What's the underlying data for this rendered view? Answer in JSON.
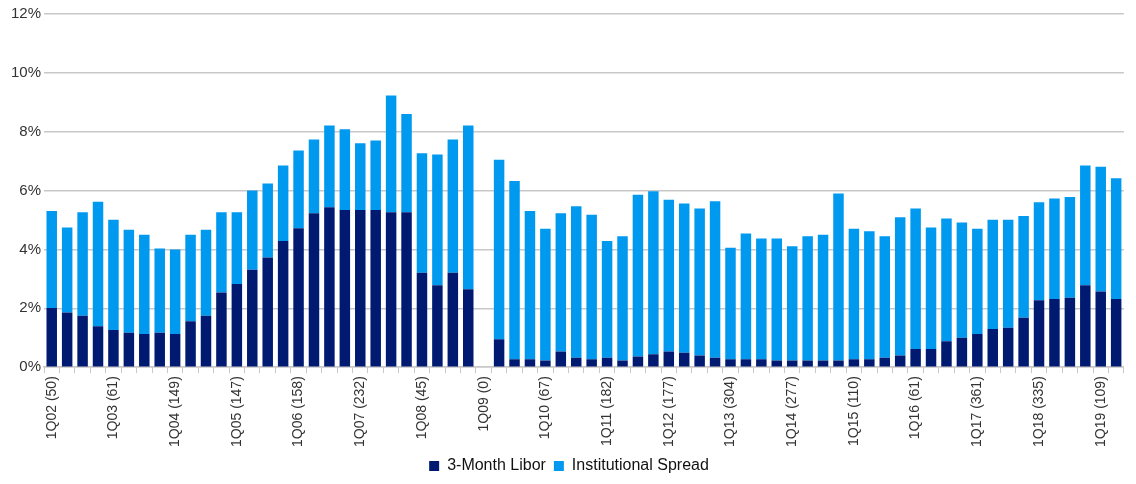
{
  "chart_data": {
    "type": "bar",
    "stacked": true,
    "categories": [
      "1Q02 (50)",
      null,
      null,
      null,
      "1Q03 (61)",
      null,
      null,
      null,
      "1Q04 (149)",
      null,
      null,
      null,
      "1Q05 (147)",
      null,
      null,
      null,
      "1Q06 (158)",
      null,
      null,
      null,
      "1Q07 (232)",
      null,
      null,
      null,
      "1Q08 (45)",
      null,
      null,
      null,
      "1Q09 (0)",
      null,
      null,
      null,
      "1Q10 (67)",
      null,
      null,
      null,
      "1Q11 (182)",
      null,
      null,
      null,
      "1Q12 (177)",
      null,
      null,
      null,
      "1Q13 (304)",
      null,
      null,
      null,
      "1Q14 (277)",
      null,
      null,
      null,
      "1Q15 (110)",
      null,
      null,
      null,
      "1Q16 (61)",
      null,
      null,
      null,
      "1Q17 (361)",
      null,
      null,
      null,
      "1Q18 (335)",
      null,
      null,
      null,
      "1Q19 (109)",
      null
    ],
    "series": [
      {
        "name": "3-Month Libor",
        "color": "#001a72",
        "values": [
          2.01,
          1.86,
          1.75,
          1.39,
          1.26,
          1.17,
          1.13,
          1.17,
          1.13,
          1.56,
          1.75,
          2.54,
          2.83,
          3.31,
          3.73,
          4.29,
          4.72,
          5.23,
          5.43,
          5.34,
          5.34,
          5.34,
          5.26,
          5.26,
          3.21,
          2.78,
          3.21,
          2.65,
          null,
          0.95,
          0.27,
          0.27,
          0.23,
          0.53,
          0.32,
          0.27,
          0.32,
          0.23,
          0.36,
          0.44,
          0.53,
          0.49,
          0.4,
          0.32,
          0.27,
          0.27,
          0.27,
          0.23,
          0.23,
          0.23,
          0.23,
          0.23,
          0.27,
          0.27,
          0.32,
          0.4,
          0.62,
          0.62,
          0.88,
          1.0,
          1.13,
          1.3,
          1.34,
          1.68,
          2.27,
          2.32,
          2.36,
          2.78,
          2.57,
          2.32
        ]
      },
      {
        "name": "Institutional Spread",
        "color": "#0099f0",
        "values": [
          3.3,
          2.89,
          3.51,
          4.23,
          3.75,
          3.5,
          3.37,
          2.86,
          2.87,
          2.94,
          2.92,
          2.72,
          2.43,
          2.69,
          2.51,
          2.56,
          2.64,
          2.51,
          2.78,
          2.74,
          2.27,
          2.36,
          3.97,
          3.34,
          4.06,
          4.45,
          4.53,
          5.56,
          null,
          6.1,
          6.06,
          5.04,
          4.47,
          4.7,
          5.15,
          4.91,
          3.97,
          4.22,
          5.5,
          5.54,
          5.16,
          5.07,
          4.99,
          5.32,
          3.79,
          4.27,
          4.1,
          4.14,
          3.88,
          4.22,
          4.27,
          5.67,
          4.43,
          4.35,
          4.13,
          4.69,
          4.77,
          4.13,
          4.17,
          3.92,
          3.57,
          3.71,
          3.67,
          3.46,
          3.33,
          3.41,
          3.42,
          4.07,
          4.24,
          4.1
        ]
      }
    ],
    "ylim": [
      0,
      12
    ],
    "yticks": [
      {
        "value": 0,
        "label": "0%"
      },
      {
        "value": 2,
        "label": "2%"
      },
      {
        "value": 4,
        "label": "4%"
      },
      {
        "value": 6,
        "label": "6%"
      },
      {
        "value": 8,
        "label": "8%"
      },
      {
        "value": 10,
        "label": "10%"
      },
      {
        "value": 12,
        "label": "12%"
      }
    ],
    "grid": "y",
    "legend": "bottom"
  }
}
